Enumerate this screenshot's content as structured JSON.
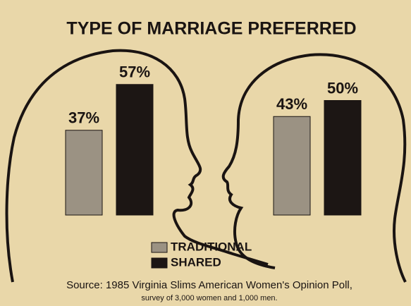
{
  "chart_data": {
    "type": "bar",
    "title": "TYPE OF MARRIAGE PREFERRED",
    "categories": [
      null,
      null
    ],
    "series": [
      {
        "name": "TRADITIONAL",
        "color": "#9b9283",
        "values": [
          37,
          43
        ],
        "value_labels": [
          "37%",
          "43%"
        ]
      },
      {
        "name": "SHARED",
        "color": "#1c1614",
        "values": [
          57,
          50
        ],
        "value_labels": [
          "57%",
          "50%"
        ]
      }
    ],
    "source": "Source: 1985 Virginia Slims American Women's Opinion Poll,",
    "note": "survey of 3,000 women and 1,000 men."
  }
}
